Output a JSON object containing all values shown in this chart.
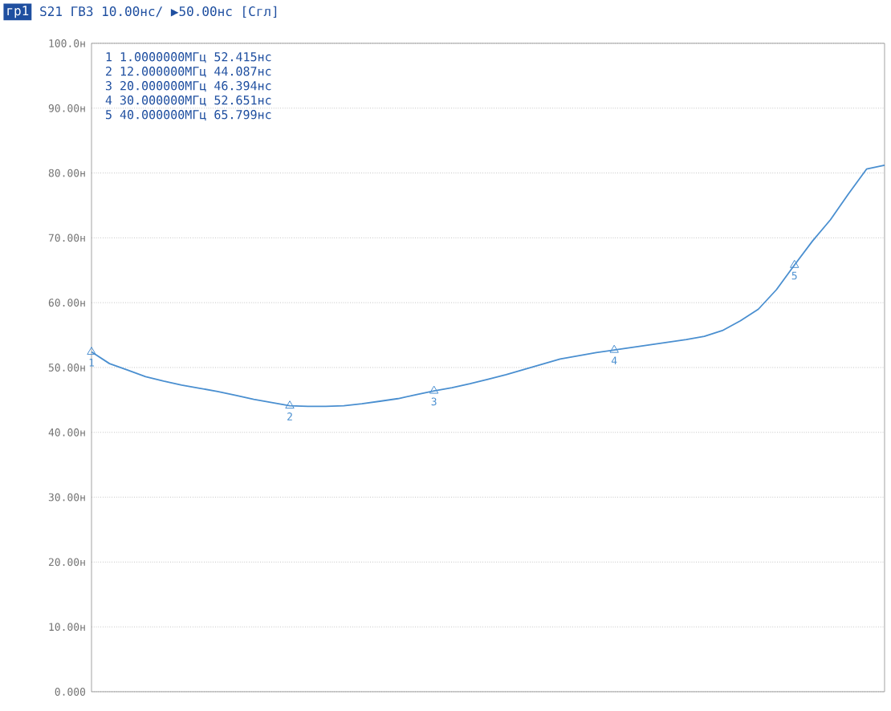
{
  "chart_data": {
    "type": "line",
    "title": "гр1",
    "subtitle": "S21 ГВЗ 10.00нс/ ▶50.00нс [Сгл]",
    "categories": [
      null,
      null,
      null,
      null,
      null,
      null,
      null,
      null,
      null,
      null,
      null,
      null,
      null,
      null,
      null,
      null,
      null,
      null,
      null,
      null,
      null,
      null,
      null,
      null,
      null,
      null,
      null,
      null,
      null,
      null,
      null,
      null,
      null,
      null,
      null,
      null,
      null,
      null,
      null,
      null,
      null,
      null,
      null,
      null,
      null
    ],
    "ylim": [
      0,
      100
    ],
    "yticks": [
      {
        "value": 0,
        "label": "0.000"
      },
      {
        "value": 10,
        "label": "10.00н"
      },
      {
        "value": 20,
        "label": "20.00н"
      },
      {
        "value": 30,
        "label": "30.00н"
      },
      {
        "value": 40,
        "label": "40.00н"
      },
      {
        "value": 50,
        "label": "50.00н"
      },
      {
        "value": 60,
        "label": "60.00н"
      },
      {
        "value": 70,
        "label": "70.00н"
      },
      {
        "value": 80,
        "label": "80.00н"
      },
      {
        "value": 90,
        "label": "90.00н"
      },
      {
        "value": 100,
        "label": "100.0н"
      }
    ],
    "tick_labels": "y",
    "grid": "y",
    "series": [
      {
        "color": "#4a8fd0",
        "values": [
          52.4,
          50.6,
          49.6,
          48.6,
          47.9,
          47.3,
          46.8,
          46.3,
          45.7,
          45.1,
          44.6,
          44.1,
          44.0,
          44.0,
          44.1,
          44.4,
          44.8,
          45.2,
          45.8,
          46.4,
          46.9,
          47.5,
          48.2,
          48.9,
          49.7,
          50.5,
          51.3,
          51.8,
          52.3,
          52.7,
          53.1,
          53.5,
          53.9,
          54.3,
          54.8,
          55.7,
          57.2,
          59.0,
          62.0,
          65.8,
          69.5,
          72.8,
          76.8,
          80.6,
          81.2
        ]
      },
      {
        "type": "scatter",
        "color": "#4a8fd0",
        "marker": "triangle",
        "values": [
          52.4,
          null,
          null,
          null,
          null,
          null,
          null,
          null,
          null,
          null,
          null,
          44.1,
          null,
          null,
          null,
          null,
          null,
          null,
          null,
          46.4,
          null,
          null,
          null,
          null,
          null,
          null,
          null,
          null,
          null,
          52.7,
          null,
          null,
          null,
          null,
          null,
          null,
          null,
          null,
          null,
          65.8,
          null,
          null,
          null,
          null,
          null
        ]
      }
    ],
    "annotations": [
      "1   1.0000000МГц  52.415нс",
      "2  12.000000МГц  44.087нс",
      "3  20.000000МГц  46.394нс",
      "4  30.000000МГц  52.651нс",
      "5  40.000000МГц  65.799нс",
      {
        "text": "1",
        "y": 52.4
      },
      {
        "text": "2",
        "y": 44.1
      },
      {
        "text": "3",
        "y": 46.4
      },
      {
        "text": "4",
        "y": 52.7
      },
      {
        "text": "5",
        "y": 65.8
      }
    ]
  }
}
